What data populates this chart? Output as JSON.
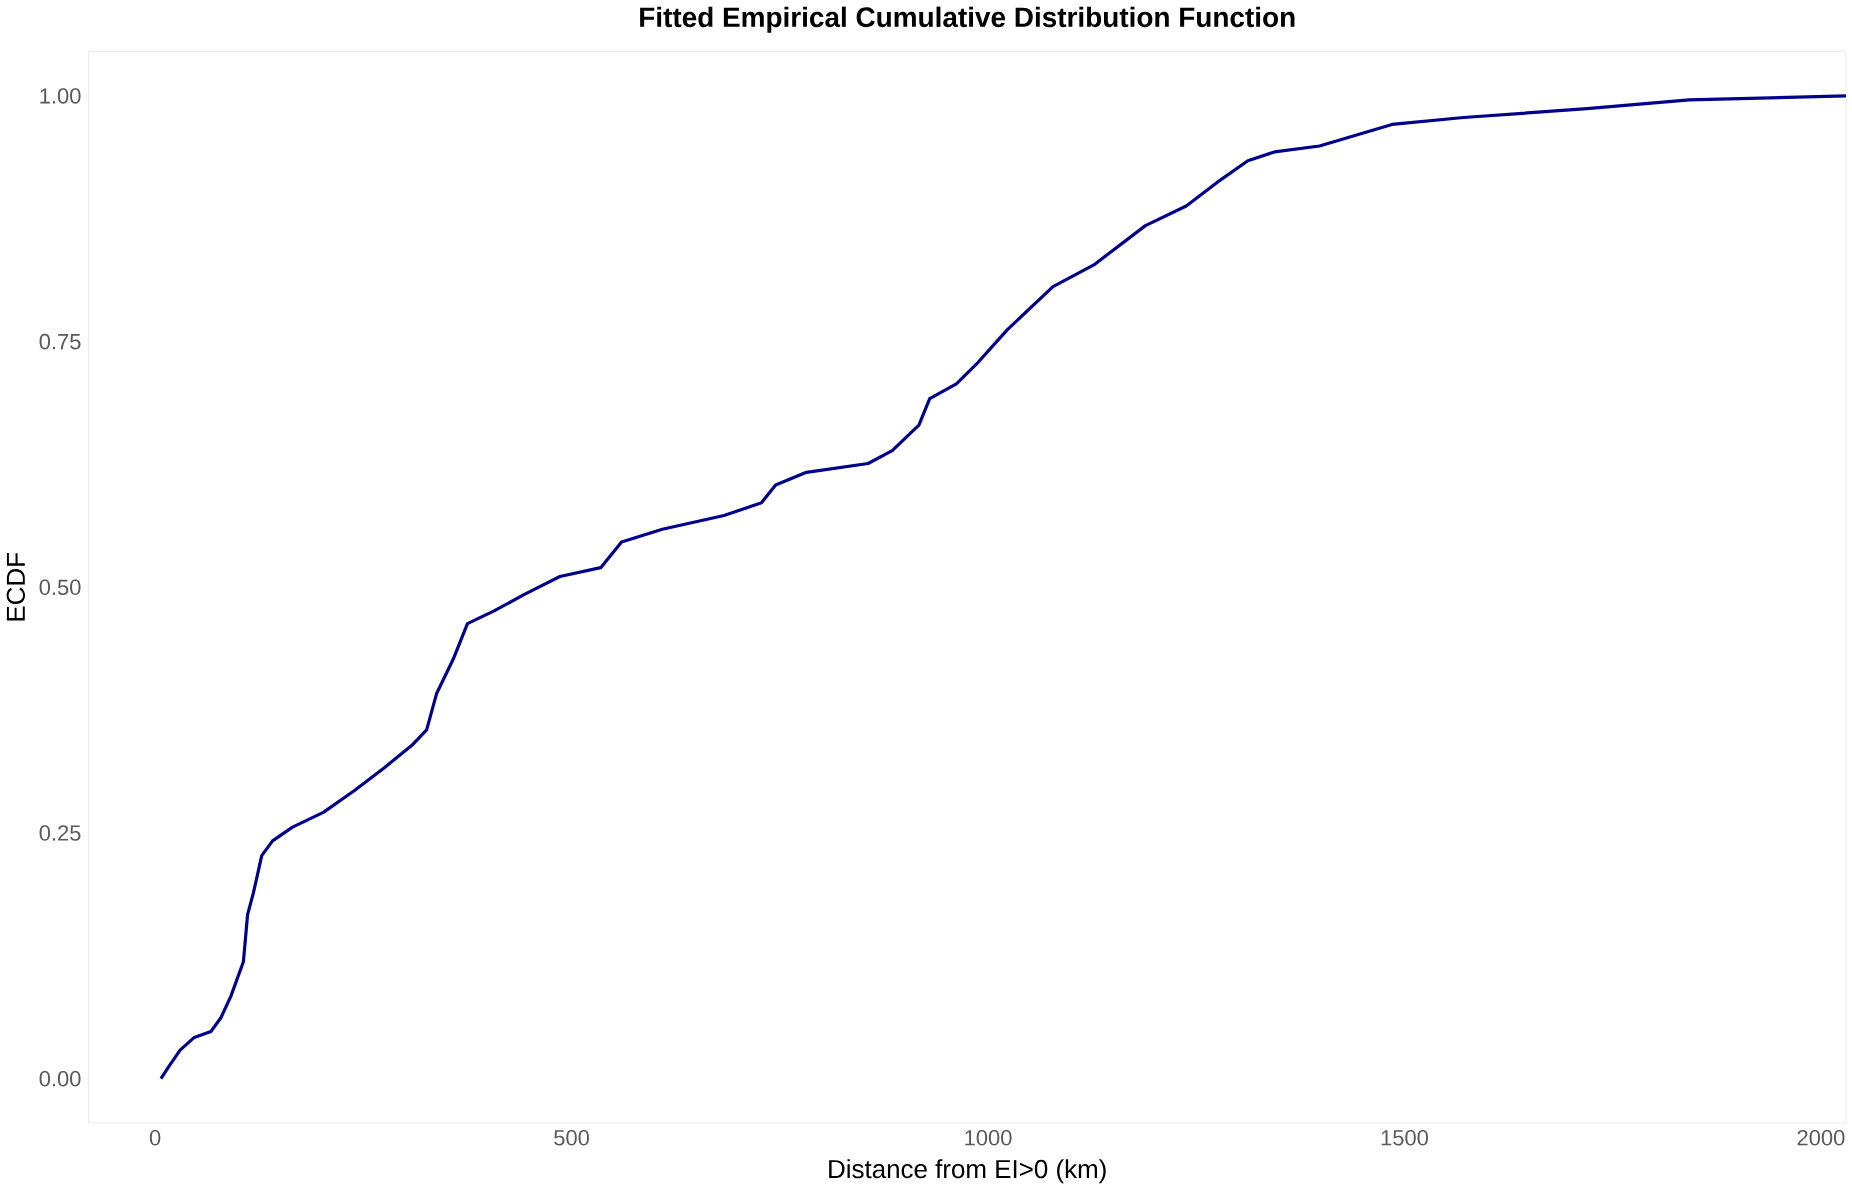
{
  "chart_data": {
    "type": "line",
    "title": "Fitted Empirical Cumulative Distribution Function",
    "xlabel": "Distance from EI>0 (km)",
    "ylabel": "ECDF",
    "xlim": [
      -80,
      2030
    ],
    "ylim": [
      -0.045,
      1.045
    ],
    "xticks": [
      0,
      500,
      1000,
      1500,
      2000
    ],
    "yticks": [
      {
        "value": 0,
        "label": "0.00"
      },
      {
        "value": 0.25,
        "label": "0.25"
      },
      {
        "value": 0.5,
        "label": "0.50"
      },
      {
        "value": 0.75,
        "label": "0.75"
      },
      {
        "value": 1,
        "label": "1.00"
      }
    ],
    "grid": false,
    "marker": "none",
    "line_style": "solid",
    "series": [
      {
        "color": "#00008b",
        "x": [
          7,
          17,
          30,
          47,
          67,
          79,
          91,
          106,
          111,
          118,
          128,
          141,
          165,
          202,
          239,
          276,
          308,
          326,
          338,
          358,
          375,
          407,
          444,
          486,
          535,
          560,
          609,
          683,
          728,
          745,
          782,
          856,
          885,
          917,
          930,
          962,
          986,
          1023,
          1078,
          1127,
          1189,
          1238,
          1275,
          1312,
          1344,
          1398,
          1485,
          1571,
          1719,
          1842,
          2030
        ],
        "values": [
          0,
          0.013,
          0.029,
          0.042,
          0.048,
          0.062,
          0.084,
          0.119,
          0.167,
          0.189,
          0.227,
          0.242,
          0.256,
          0.271,
          0.293,
          0.317,
          0.339,
          0.355,
          0.392,
          0.427,
          0.463,
          0.476,
          0.493,
          0.511,
          0.52,
          0.546,
          0.559,
          0.573,
          0.586,
          0.604,
          0.617,
          0.626,
          0.639,
          0.665,
          0.692,
          0.707,
          0.727,
          0.762,
          0.806,
          0.828,
          0.868,
          0.888,
          0.912,
          0.934,
          0.943,
          0.949,
          0.971,
          0.978,
          0.987,
          0.996,
          1.0
        ]
      }
    ]
  }
}
